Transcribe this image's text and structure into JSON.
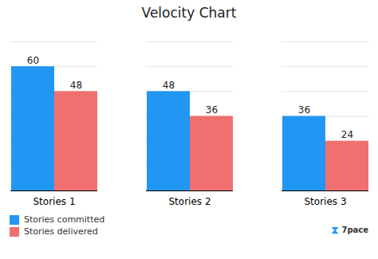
{
  "chart_data": {
    "type": "bar",
    "title": "Velocity Chart",
    "categories": [
      "Stories 1",
      "Stories 2",
      "Stories 3"
    ],
    "series": [
      {
        "name": "Stories committed",
        "color": "#2196F3",
        "values": [
          60,
          48,
          36
        ]
      },
      {
        "name": "Stories delivered",
        "color": "#F07070",
        "values": [
          48,
          36,
          24
        ]
      }
    ],
    "ylim": [
      0,
      72
    ],
    "yticks": [
      0,
      12,
      24,
      36,
      48,
      60,
      72
    ],
    "grid": true,
    "data_labels": true,
    "tick_labels": "x",
    "legend": "bottom",
    "annotations": [
      "⧗",
      "7pace"
    ]
  }
}
